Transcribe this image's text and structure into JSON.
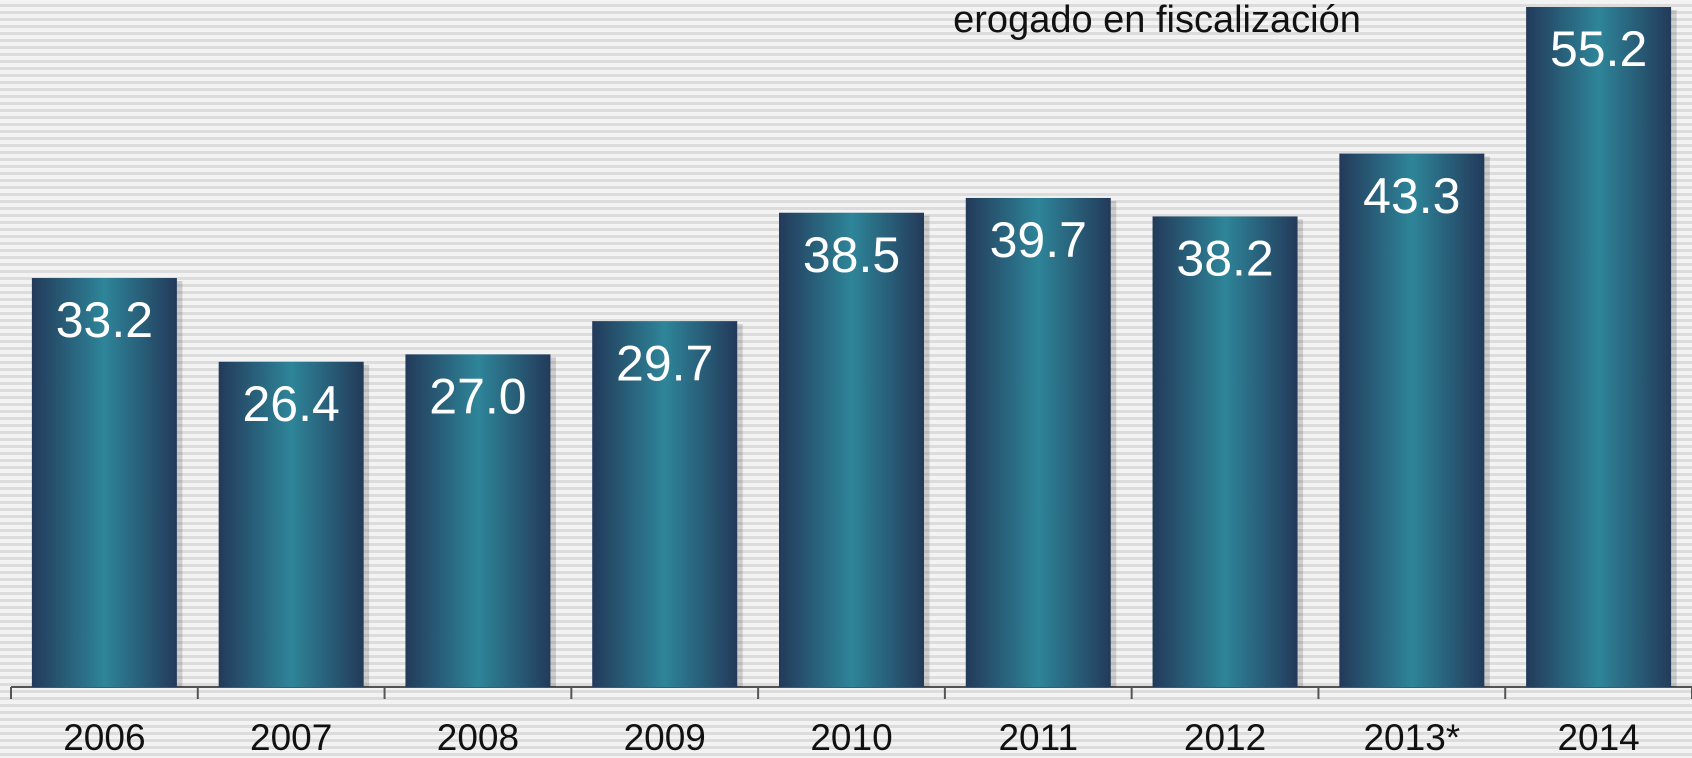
{
  "chart_data": {
    "type": "bar",
    "title": "erogado en fiscalización",
    "categories": [
      "2006",
      "2007",
      "2008",
      "2009",
      "2010",
      "2011",
      "2012",
      "2013*",
      "2014"
    ],
    "values": [
      33.2,
      26.4,
      27.0,
      29.7,
      38.5,
      39.7,
      38.2,
      43.3,
      55.2
    ],
    "value_labels": [
      "33.2",
      "26.4",
      "27.0",
      "29.7",
      "38.5",
      "39.7",
      "38.2",
      "43.3",
      "55.2"
    ],
    "color": "#2e8599"
  }
}
